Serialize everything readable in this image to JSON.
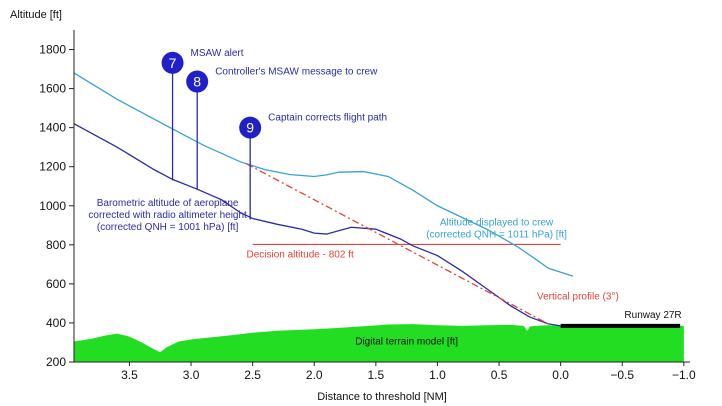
{
  "chart_data": {
    "type": "line",
    "ylabel": "Altitude [ft]",
    "xlabel": "Distance to threshold [NM]",
    "xlim": [
      3.95,
      -1.05
    ],
    "ylim": [
      200,
      1900
    ],
    "x_ticks": [
      {
        "value": 3.5,
        "label": "3.5"
      },
      {
        "value": 3.0,
        "label": "3.0"
      },
      {
        "value": 2.5,
        "label": "2.5"
      },
      {
        "value": 2.0,
        "label": "2.0"
      },
      {
        "value": 1.5,
        "label": "1.5"
      },
      {
        "value": 1.0,
        "label": "1.0"
      },
      {
        "value": 0.5,
        "label": "0.5"
      },
      {
        "value": 0.0,
        "label": "0.0"
      },
      {
        "value": -0.5,
        "label": "−0.5"
      },
      {
        "value": -1.0,
        "label": "−1.0"
      }
    ],
    "y_ticks": [
      {
        "value": 200,
        "label": "200"
      },
      {
        "value": 400,
        "label": "400"
      },
      {
        "value": 600,
        "label": "600"
      },
      {
        "value": 800,
        "label": "800"
      },
      {
        "value": 1000,
        "label": "1000"
      },
      {
        "value": 1200,
        "label": "1200"
      },
      {
        "value": 1400,
        "label": "1400"
      },
      {
        "value": 1600,
        "label": "1600"
      },
      {
        "value": 1800,
        "label": "1800"
      }
    ],
    "series": [
      {
        "name": "Altitude displayed to crew",
        "label_lines": [
          "Altitude displayed to crew",
          "(corrected QNH = 1011 hPa) [ft]"
        ],
        "label_at": [
          0.52,
          898
        ],
        "color": "#3aa0d8",
        "x": [
          3.95,
          3.6,
          3.2,
          2.9,
          2.6,
          2.4,
          2.2,
          2.0,
          1.9,
          1.8,
          1.6,
          1.4,
          1.3,
          1.2,
          1.0,
          0.8,
          0.6,
          0.5,
          0.35,
          0.2,
          0.1,
          -0.1
        ],
        "y": [
          1680,
          1545,
          1410,
          1310,
          1225,
          1185,
          1160,
          1150,
          1158,
          1172,
          1175,
          1150,
          1115,
          1080,
          1000,
          940,
          880,
          845,
          790,
          725,
          680,
          640
        ]
      },
      {
        "name": "Barometric altitude of aeroplane",
        "label_lines": [
          "Barometric altitude of aeroplane",
          "corrected with radio altimeter height",
          "(corrected QNH = 1001 hPa) [ft]"
        ],
        "label_at": [
          3.19,
          1000
        ],
        "color": "#2b2ba8",
        "x": [
          3.95,
          3.6,
          3.3,
          3.15,
          2.95,
          2.75,
          2.6,
          2.5,
          2.3,
          2.1,
          2.0,
          1.9,
          1.7,
          1.5,
          1.3,
          1.2,
          1.0,
          0.8,
          0.6,
          0.4,
          0.25,
          0.1,
          0.0
        ],
        "y": [
          1420,
          1300,
          1185,
          1135,
          1085,
          1030,
          965,
          935,
          905,
          880,
          860,
          855,
          890,
          880,
          830,
          795,
          745,
          665,
          575,
          485,
          430,
          395,
          385
        ]
      },
      {
        "name": "Vertical profile (3°)",
        "label_lines": [
          "Vertical profile (3°)"
        ],
        "label_at": [
          -0.14,
          520
        ],
        "color": "#e0443a",
        "dashed": true,
        "x": [
          2.55,
          0.1
        ],
        "y": [
          1215,
          395
        ]
      }
    ],
    "decision_altitude": {
      "label": "Decision altitude - 802 ft",
      "value": 802,
      "x_from": 2.5,
      "x_to": 0.0,
      "color": "#e0443a"
    },
    "runway": {
      "label": "Runway 27R",
      "x_from": 0.0,
      "x_to": -0.97,
      "y": 385
    },
    "terrain": {
      "label": "Digital terrain model [ft]",
      "color": "#22dd22",
      "x": [
        3.95,
        3.8,
        3.7,
        3.6,
        3.5,
        3.4,
        3.3,
        3.25,
        3.2,
        3.1,
        3.0,
        2.9,
        2.7,
        2.5,
        2.3,
        2.0,
        1.8,
        1.6,
        1.4,
        1.2,
        1.0,
        0.8,
        0.6,
        0.4,
        0.3,
        0.27,
        0.25,
        0.2,
        0.1,
        0.0,
        -0.5,
        -1.0
      ],
      "y": [
        305,
        320,
        335,
        345,
        330,
        300,
        265,
        250,
        275,
        305,
        315,
        322,
        335,
        350,
        360,
        368,
        375,
        383,
        392,
        394,
        388,
        385,
        388,
        390,
        385,
        360,
        382,
        385,
        388,
        385,
        385,
        385
      ]
    },
    "annotations": [
      {
        "marker": "7",
        "text": "MSAW alert",
        "x": 3.15,
        "stem_bottom": 1130,
        "circle_y": 1732
      },
      {
        "marker": "8",
        "text": "Controller's MSAW message to crew",
        "x": 2.95,
        "stem_bottom": 1082,
        "circle_y": 1636
      },
      {
        "marker": "9",
        "text": "Captain corrects flight path",
        "x": 2.52,
        "stem_bottom": 930,
        "circle_y": 1400
      }
    ]
  }
}
